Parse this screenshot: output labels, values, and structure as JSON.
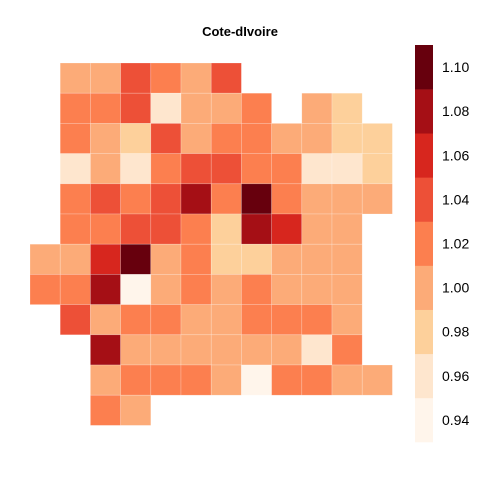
{
  "chart_data": {
    "type": "heatmap",
    "title": "Cote-dIvoire",
    "grid": false,
    "legend_position": "right",
    "legend": {
      "ticks": [
        1.1,
        1.08,
        1.06,
        1.04,
        1.02,
        1.0,
        0.98,
        0.96,
        0.94
      ],
      "tick_labels": [
        "1.10",
        "1.08",
        "1.06",
        "1.04",
        "1.02",
        "1.00",
        "0.98",
        "0.96",
        "0.94"
      ],
      "bins": [
        {
          "from": 0.93,
          "to": 0.95,
          "color": "#fff5eb"
        },
        {
          "from": 0.95,
          "to": 0.97,
          "color": "#fee6ce"
        },
        {
          "from": 0.97,
          "to": 0.99,
          "color": "#fdd09b"
        },
        {
          "from": 0.99,
          "to": 1.01,
          "color": "#fcab78"
        },
        {
          "from": 1.01,
          "to": 1.03,
          "color": "#fc7f4f"
        },
        {
          "from": 1.03,
          "to": 1.05,
          "color": "#ed5037"
        },
        {
          "from": 1.05,
          "to": 1.07,
          "color": "#d7261e"
        },
        {
          "from": 1.07,
          "to": 1.09,
          "color": "#a50f15"
        },
        {
          "from": 1.09,
          "to": 1.11,
          "color": "#67000d"
        }
      ]
    },
    "grid_values": [
      [
        null,
        1.0,
        1.0,
        1.04,
        1.02,
        1.0,
        1.04,
        null,
        null,
        null,
        null,
        null
      ],
      [
        null,
        1.02,
        1.02,
        1.04,
        0.96,
        1.0,
        1.0,
        1.02,
        null,
        1.0,
        0.98,
        null
      ],
      [
        null,
        1.02,
        1.0,
        0.98,
        1.04,
        1.0,
        1.02,
        1.02,
        1.0,
        1.0,
        0.98,
        0.98
      ],
      [
        null,
        0.96,
        1.0,
        0.96,
        1.02,
        1.04,
        1.04,
        1.02,
        1.02,
        0.96,
        0.96,
        0.98
      ],
      [
        null,
        1.02,
        1.04,
        1.02,
        1.04,
        1.08,
        1.02,
        1.1,
        1.02,
        1.0,
        1.0,
        1.0
      ],
      [
        null,
        1.02,
        1.02,
        1.04,
        1.04,
        1.02,
        0.98,
        1.08,
        1.06,
        1.0,
        1.0,
        null
      ],
      [
        1.0,
        1.0,
        1.06,
        1.1,
        1.0,
        1.02,
        0.98,
        0.98,
        1.0,
        1.0,
        1.0,
        null
      ],
      [
        1.02,
        1.02,
        1.08,
        0.94,
        1.0,
        1.02,
        1.0,
        1.02,
        1.0,
        1.0,
        1.0,
        null
      ],
      [
        null,
        1.04,
        1.0,
        1.02,
        1.02,
        1.0,
        1.0,
        1.02,
        1.02,
        1.02,
        1.0,
        null
      ],
      [
        null,
        null,
        1.08,
        1.0,
        1.0,
        1.0,
        1.0,
        1.0,
        1.0,
        0.96,
        1.02,
        null
      ],
      [
        null,
        null,
        1.0,
        1.02,
        1.02,
        1.02,
        1.0,
        0.94,
        1.02,
        1.02,
        1.0,
        1.0
      ],
      [
        null,
        null,
        1.02,
        1.0,
        null,
        null,
        null,
        null,
        null,
        null,
        null,
        null
      ]
    ]
  }
}
